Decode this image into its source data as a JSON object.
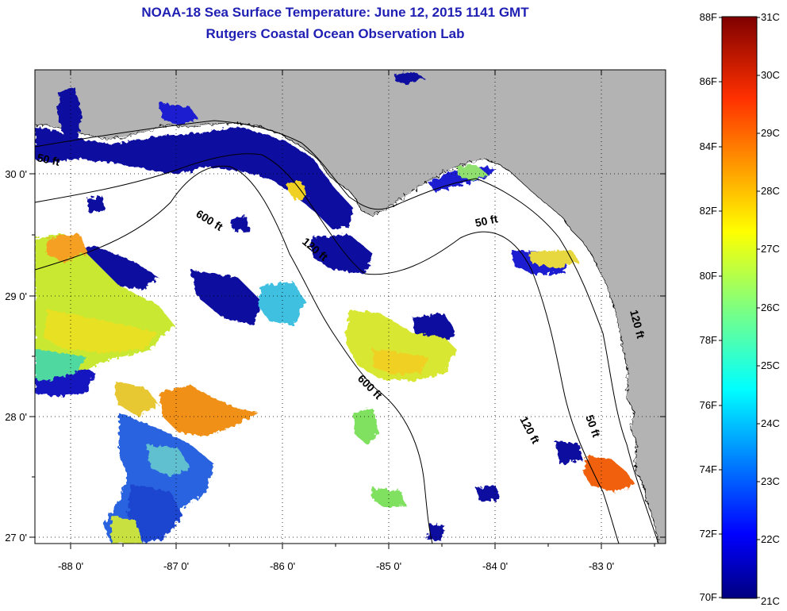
{
  "header": {
    "title": "NOAA-18 Sea Surface Temperature:  June 12, 2015 1141 GMT",
    "subtitle": "Rutgers Coastal Ocean Observation Lab"
  },
  "map": {
    "longitude_labels": [
      "-88 0'",
      "-87 0'",
      "-86 0'",
      "-85 0'",
      "-84 0'",
      "-83 0'"
    ],
    "latitude_labels": [
      "30 0'",
      "29 0'",
      "28 0'",
      "27 0'"
    ],
    "contour_labels": [
      "50 ft",
      "600 ft",
      "120 ft",
      "50 ft",
      "120 ft",
      "600 ft",
      "120 ft",
      "50 ft"
    ],
    "colors": {
      "land": "#b3b3b3",
      "ocean": "#ffffff",
      "contour": "#000000"
    }
  },
  "colorbar": {
    "fahrenheit_labels": [
      "88F",
      "86F",
      "84F",
      "82F",
      "80F",
      "78F",
      "76F",
      "74F",
      "72F",
      "70F"
    ],
    "celsius_labels": [
      "31C",
      "30C",
      "29C",
      "28C",
      "27C",
      "26C",
      "25C",
      "24C",
      "23C",
      "22C",
      "21C"
    ],
    "colors": [
      "#00007f",
      "#0000ff",
      "#007fff",
      "#00ffff",
      "#7fff7f",
      "#ffff00",
      "#ff7f00",
      "#ff0000",
      "#7f0000"
    ]
  }
}
